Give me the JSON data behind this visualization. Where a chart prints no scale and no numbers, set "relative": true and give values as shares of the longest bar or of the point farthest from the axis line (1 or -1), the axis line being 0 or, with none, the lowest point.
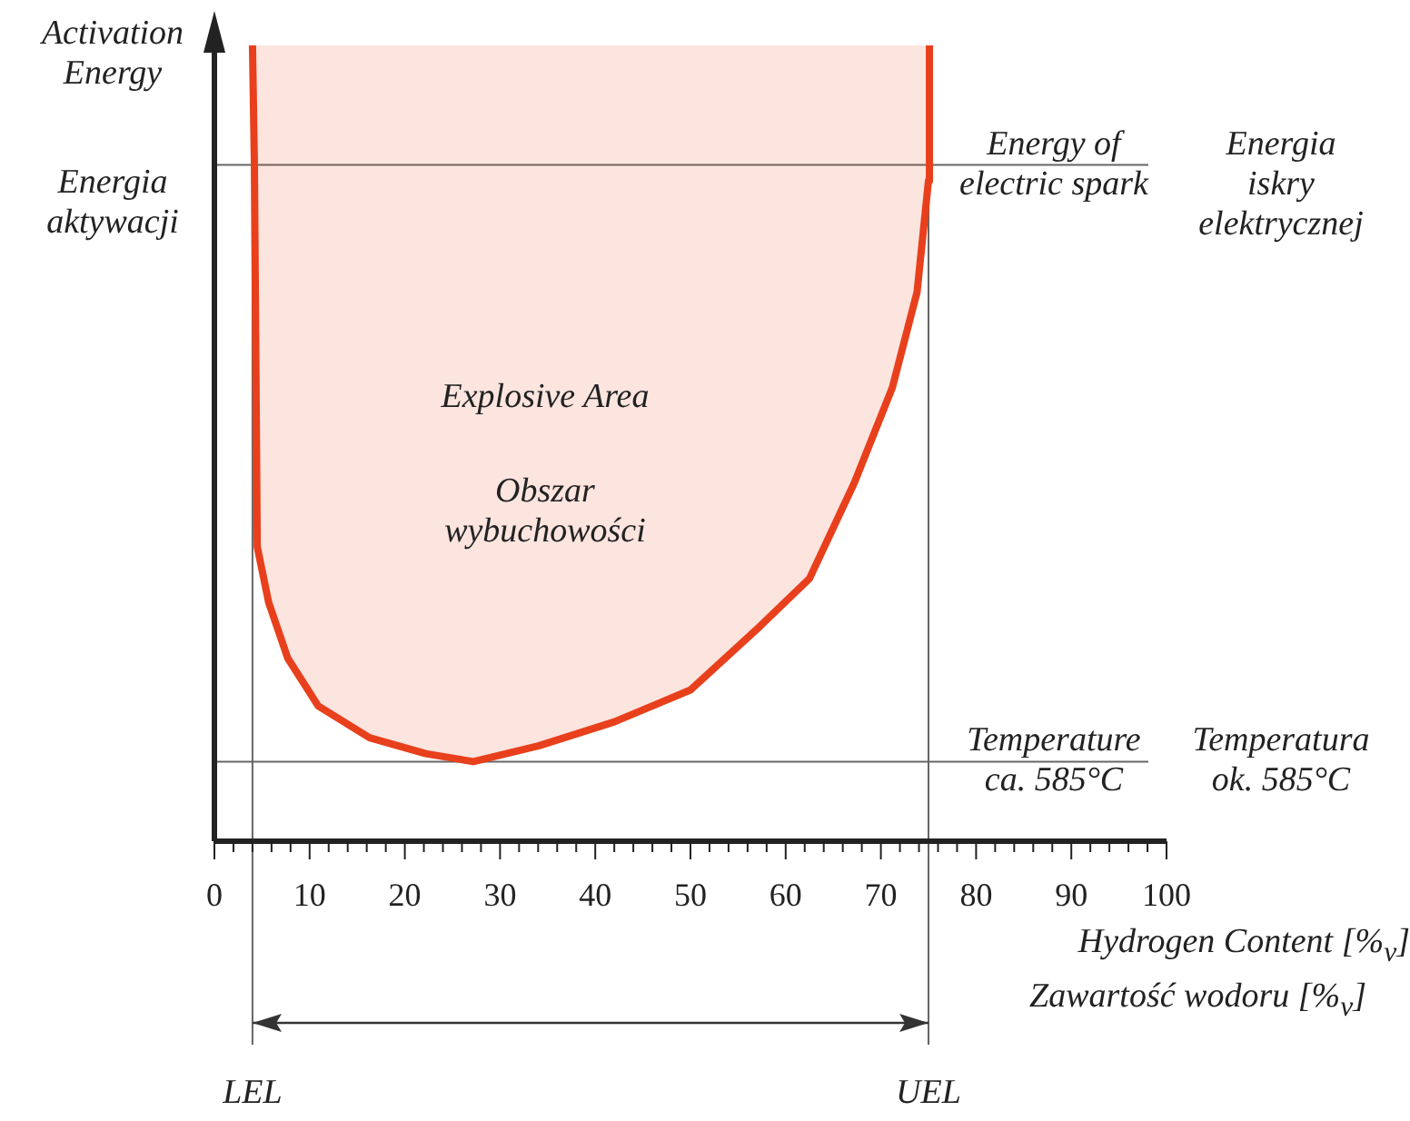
{
  "chart_data": {
    "type": "area",
    "relative": true,
    "ylabel": "Activation Energy",
    "xlabel": "Hydrogen Content [%$_{v}$]",
    "x": [
      4.0,
      4.2,
      4.5,
      5.7,
      7.7,
      10.9,
      16.3,
      22.2,
      27.2,
      34.1,
      42,
      50,
      57.3,
      62.5,
      67.2,
      71.2,
      73.8,
      75.0,
      75.1
    ],
    "values": [
      1.0,
      0.85,
      0.37,
      0.3,
      0.23,
      0.17,
      0.13,
      0.11,
      0.1,
      0.12,
      0.15,
      0.19,
      0.27,
      0.33,
      0.45,
      0.57,
      0.69,
      0.83,
      1.0
    ],
    "color": "#e8401c",
    "xlim": [
      0,
      100
    ],
    "xticks": [
      0,
      {
        "value": 2,
        "label": null
      },
      {
        "value": 4,
        "label": null
      },
      {
        "value": 6,
        "label": null
      },
      {
        "value": 8,
        "label": null
      },
      10,
      {
        "value": 12,
        "label": null
      },
      {
        "value": 14,
        "label": null
      },
      {
        "value": 16,
        "label": null
      },
      {
        "value": 18,
        "label": null
      },
      20,
      {
        "value": 22,
        "label": null
      },
      {
        "value": 24,
        "label": null
      },
      {
        "value": 26,
        "label": null
      },
      {
        "value": 28,
        "label": null
      },
      30,
      {
        "value": 32,
        "label": null
      },
      {
        "value": 34,
        "label": null
      },
      {
        "value": 36,
        "label": null
      },
      {
        "value": 38,
        "label": null
      },
      40,
      {
        "value": 42,
        "label": null
      },
      {
        "value": 44,
        "label": null
      },
      {
        "value": 46,
        "label": null
      },
      {
        "value": 48,
        "label": null
      },
      50,
      {
        "value": 52,
        "label": null
      },
      {
        "value": 54,
        "label": null
      },
      {
        "value": 56,
        "label": null
      },
      {
        "value": 58,
        "label": null
      },
      60,
      {
        "value": 62,
        "label": null
      },
      {
        "value": 64,
        "label": null
      },
      {
        "value": 66,
        "label": null
      },
      {
        "value": 68,
        "label": null
      },
      70,
      {
        "value": 72,
        "label": null
      },
      {
        "value": 74,
        "label": null
      },
      {
        "value": 76,
        "label": null
      },
      {
        "value": 78,
        "label": null
      },
      80,
      {
        "value": 82,
        "label": null
      },
      {
        "value": 84,
        "label": null
      },
      {
        "value": 86,
        "label": null
      },
      {
        "value": 88,
        "label": null
      },
      90,
      {
        "value": 92,
        "label": null
      },
      {
        "value": 94,
        "label": null
      },
      {
        "value": 96,
        "label": null
      },
      {
        "value": 98,
        "label": null
      },
      100
    ],
    "ref_lines": [
      {
        "axis": "y",
        "value": 0.85,
        "label": "Energy of electric spark"
      },
      {
        "axis": "y",
        "value": 0.1,
        "label": "Temperature ca. 585°C"
      },
      {
        "axis": "x",
        "value": 4,
        "label": "LEL"
      },
      {
        "axis": "x",
        "value": 75,
        "label": "UEL"
      }
    ],
    "annotations": [
      "Energia aktywacji",
      "Zawartość wodoru [%$_{v}$]",
      "Explosive Area",
      "Obszar wybuchowości",
      "Energia iskry elektrycznej",
      "Temperatura ok. 585°C"
    ],
    "grid": false,
    "legend": false
  }
}
